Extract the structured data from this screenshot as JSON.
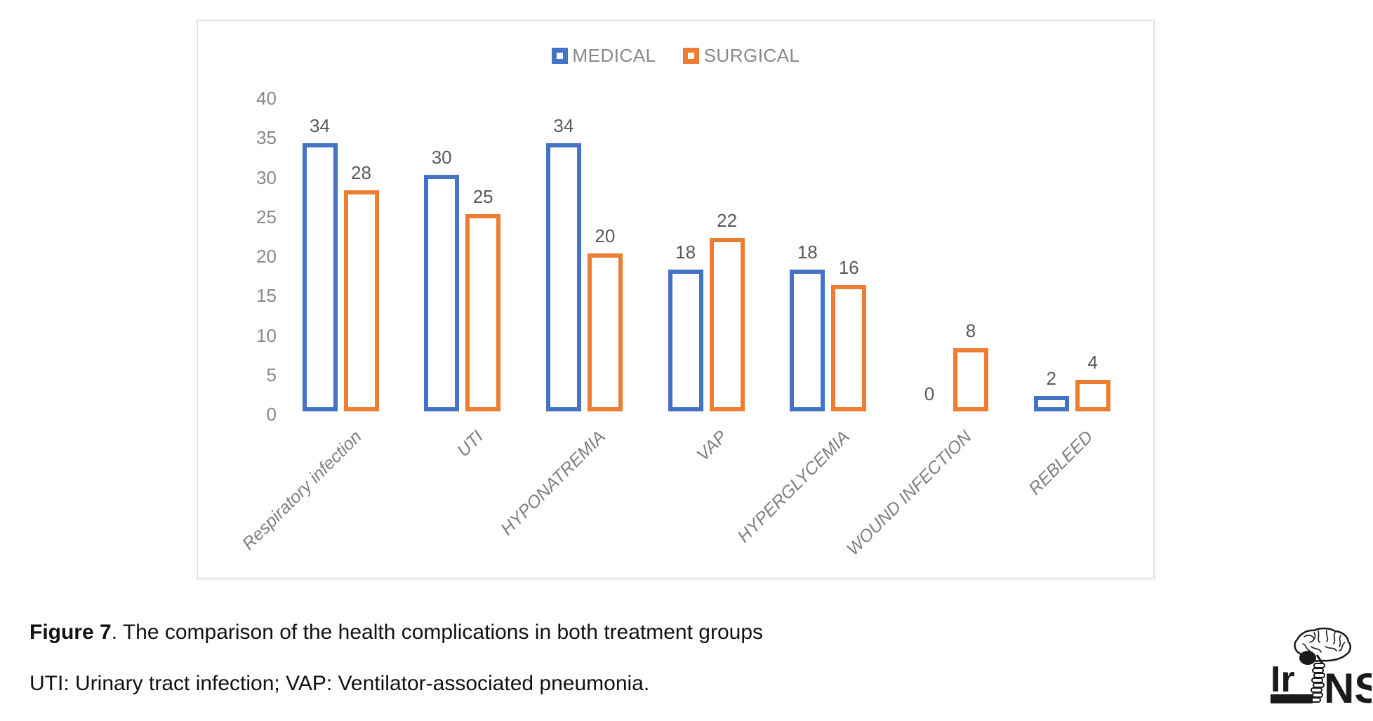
{
  "chart_data": {
    "type": "bar",
    "title": "",
    "categories": [
      "Respiratory  infection",
      "UTI",
      "HYPONATREMIA",
      "VAP",
      "HYPERGLYCEMIA",
      "WOUND INFECTION",
      "REBLEED"
    ],
    "series": [
      {
        "name": "MEDICAL",
        "color": "#4472C4",
        "values": [
          34,
          30,
          34,
          18,
          18,
          0,
          2
        ]
      },
      {
        "name": "SURGICAL",
        "color": "#ED7D31",
        "values": [
          28,
          25,
          20,
          22,
          16,
          8,
          4
        ]
      }
    ],
    "xlabel": "",
    "ylabel": "",
    "ylim": [
      0,
      40
    ],
    "yticks": [
      0,
      5,
      10,
      15,
      20,
      25,
      30,
      35,
      40
    ],
    "grid": false,
    "legend_position": "top",
    "bar_style": "outlined-hollow",
    "data_labels": true
  },
  "caption": {
    "figure_label": "Figure 7",
    "figure_text": ". The comparison of the health complications in both treatment groups",
    "abbreviations": "UTI: Urinary tract infection; VAP: Ventilator-associated pneumonia."
  },
  "logo": {
    "text_left": "Ir",
    "text_right": "NS"
  },
  "colors": {
    "medical": "#4472C4",
    "surgical": "#ED7D31",
    "axis_label": "#8a8a8a",
    "data_label": "#595959",
    "category_label": "#7f7f7f",
    "chart_border": "#e2e2e2"
  }
}
